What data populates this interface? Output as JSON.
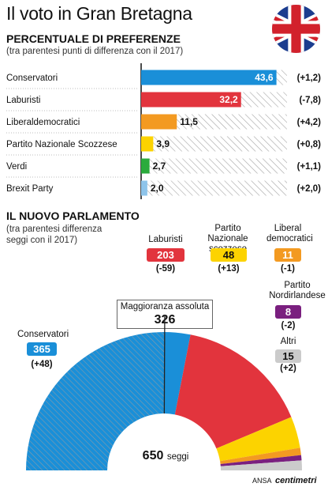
{
  "title": "Il voto in Gran Bretagna",
  "section1": {
    "heading": "PERCENTUALE DI PREFERENZE",
    "subheading": "(tra parentesi punti di differenza con il 2017)"
  },
  "section2": {
    "heading": "IL NUOVO PARLAMENTO",
    "subheading_line1": "(tra parentesi differenza",
    "subheading_line2": "seggi con il 2017)"
  },
  "colors": {
    "Conservatori": "#1a8fd8",
    "Laburisti": "#e2343d",
    "Liberaldemocratici": "#f39a21",
    "Partito Nazionale Scozzese": "#fcd300",
    "Verdi": "#2bab3c",
    "Brexit Party": "#8ec4ea",
    "Partito Nordirlandese": "#7a1f7f",
    "Altri": "#cbcbcb"
  },
  "chart_data": [
    {
      "type": "bar",
      "orientation": "horizontal",
      "categories": [
        "Conservatori",
        "Laburisti",
        "Liberaldemocratici",
        "Partito Nazionale Scozzese",
        "Verdi",
        "Brexit Party"
      ],
      "values": [
        43.6,
        32.2,
        11.5,
        3.9,
        2.7,
        2.0
      ],
      "value_labels": [
        "43,6",
        "32,2",
        "11,5",
        "3,9",
        "2,7",
        "2,0"
      ],
      "differences": [
        "(+1,2)",
        "(-7,8)",
        "(+4,2)",
        "(+0,8)",
        "(+1,1)",
        "(+2,0)"
      ],
      "xlim": [
        0,
        47
      ]
    },
    {
      "type": "pie",
      "variant": "semicircle",
      "total_label": "650",
      "total_suffix": "seggi",
      "majority_label": "Maggioranza assoluta",
      "majority_value": "326",
      "total": 650,
      "majority": 326,
      "parties": [
        {
          "name": "Conservatori",
          "seats": 365,
          "seats_label": "365",
          "diff": "(+48)"
        },
        {
          "name": "Laburisti",
          "seats": 203,
          "seats_label": "203",
          "diff": "(-59)"
        },
        {
          "name": "Partito Nazionale scozzese",
          "seats": 48,
          "seats_label": "48",
          "diff": "(+13)"
        },
        {
          "name": "Liberal democratici",
          "seats": 11,
          "seats_label": "11",
          "diff": "(-1)"
        },
        {
          "name": "Partito Nordirlandese",
          "seats": 8,
          "seats_label": "8",
          "diff": "(-2)"
        },
        {
          "name": "Altri",
          "seats": 15,
          "seats_label": "15",
          "diff": "(+2)"
        }
      ]
    }
  ],
  "footer": {
    "ansa": "ANSA",
    "brand": "centimetri"
  }
}
